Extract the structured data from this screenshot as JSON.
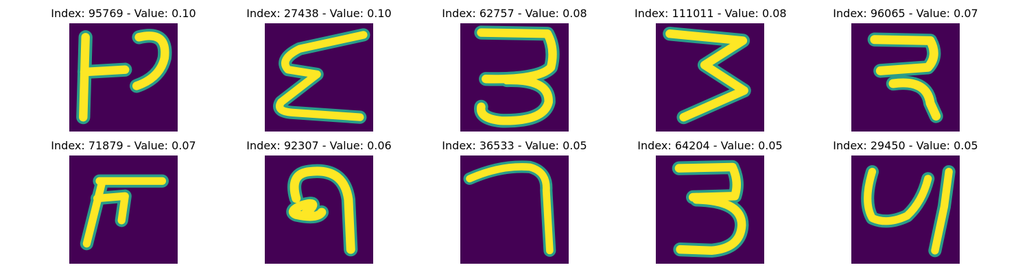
{
  "colors": {
    "background": "#440154",
    "stroke_outer": "#2a9d8a",
    "stroke_mid": "#7ad151",
    "stroke_core": "#fde725"
  },
  "panels": [
    {
      "title": "Index: 95769 - Value: 0.10",
      "glyph": "handwritten-glyph-1"
    },
    {
      "title": "Index: 27438 - Value: 0.10",
      "glyph": "handwritten-glyph-2"
    },
    {
      "title": "Index: 62757 - Value: 0.08",
      "glyph": "handwritten-glyph-3"
    },
    {
      "title": "Index: 111011 - Value: 0.08",
      "glyph": "handwritten-glyph-4"
    },
    {
      "title": "Index: 96065 - Value: 0.07",
      "glyph": "handwritten-glyph-5"
    },
    {
      "title": "Index: 71879 - Value: 0.07",
      "glyph": "handwritten-glyph-6"
    },
    {
      "title": "Index: 92307 - Value: 0.06",
      "glyph": "handwritten-glyph-7"
    },
    {
      "title": "Index: 36533 - Value: 0.05",
      "glyph": "handwritten-glyph-8"
    },
    {
      "title": "Index: 64204 - Value: 0.05",
      "glyph": "handwritten-glyph-9"
    },
    {
      "title": "Index: 29450 - Value: 0.05",
      "glyph": "handwritten-glyph-10"
    }
  ]
}
